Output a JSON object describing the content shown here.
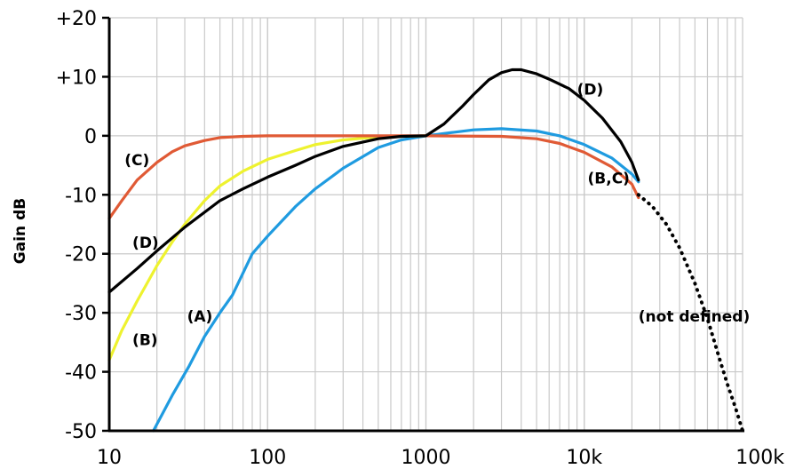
{
  "chart_data": {
    "type": "line",
    "title": "",
    "xlabel": "",
    "ylabel": "Gain dB",
    "x_scale": "log",
    "xlim": [
      10,
      100000
    ],
    "ylim": [
      -50,
      20
    ],
    "grid": true,
    "x_ticks": [
      {
        "value": 10,
        "label": "10"
      },
      {
        "value": 100,
        "label": "100"
      },
      {
        "value": 1000,
        "label": "1000"
      },
      {
        "value": 10000,
        "label": "10k"
      },
      {
        "value": 100000,
        "label": "100k"
      }
    ],
    "y_ticks": [
      {
        "value": 20,
        "label": "+20"
      },
      {
        "value": 10,
        "label": "+10"
      },
      {
        "value": 0,
        "label": "0"
      },
      {
        "value": -10,
        "label": "-10"
      },
      {
        "value": -20,
        "label": "-20"
      },
      {
        "value": -30,
        "label": "-30"
      },
      {
        "value": -40,
        "label": "-40"
      },
      {
        "value": -50,
        "label": "-50"
      }
    ],
    "series": [
      {
        "key": "A",
        "color": "#1f9be0",
        "dashed": false,
        "points": [
          [
            19,
            -50
          ],
          [
            25,
            -44
          ],
          [
            32,
            -39
          ],
          [
            40,
            -34
          ],
          [
            50,
            -30
          ],
          [
            60,
            -27
          ],
          [
            80,
            -20
          ],
          [
            100,
            -17
          ],
          [
            150,
            -12
          ],
          [
            200,
            -9
          ],
          [
            300,
            -5.5
          ],
          [
            500,
            -2
          ],
          [
            700,
            -0.7
          ],
          [
            1000,
            0
          ],
          [
            1500,
            0.6
          ],
          [
            2000,
            1
          ],
          [
            3000,
            1.2
          ],
          [
            5000,
            0.8
          ],
          [
            7000,
            0
          ],
          [
            10000,
            -1.5
          ],
          [
            15000,
            -3.8
          ],
          [
            20000,
            -6.5
          ],
          [
            22000,
            -7.8
          ]
        ]
      },
      {
        "key": "B",
        "color": "#eef22f",
        "dashed": false,
        "points": [
          [
            10,
            -38
          ],
          [
            12,
            -33
          ],
          [
            15,
            -28
          ],
          [
            20,
            -22
          ],
          [
            25,
            -18
          ],
          [
            30,
            -15
          ],
          [
            40,
            -11
          ],
          [
            50,
            -8.5
          ],
          [
            70,
            -6
          ],
          [
            100,
            -4
          ],
          [
            150,
            -2.5
          ],
          [
            200,
            -1.5
          ],
          [
            300,
            -0.7
          ],
          [
            500,
            -0.2
          ],
          [
            1000,
            0
          ]
        ]
      },
      {
        "key": "C",
        "color": "#e05a35",
        "dashed": false,
        "points": [
          [
            10,
            -14
          ],
          [
            12,
            -11
          ],
          [
            15,
            -7.5
          ],
          [
            20,
            -4.5
          ],
          [
            25,
            -2.7
          ],
          [
            30,
            -1.7
          ],
          [
            40,
            -0.8
          ],
          [
            50,
            -0.3
          ],
          [
            70,
            -0.1
          ],
          [
            100,
            0
          ],
          [
            1000,
            0
          ],
          [
            3000,
            -0.1
          ],
          [
            5000,
            -0.5
          ],
          [
            7000,
            -1.3
          ],
          [
            10000,
            -2.8
          ],
          [
            15000,
            -5.3
          ],
          [
            20000,
            -8.2
          ],
          [
            22000,
            -10.5
          ]
        ]
      },
      {
        "key": "D",
        "color": "#000000",
        "dashed": false,
        "points": [
          [
            10,
            -26.5
          ],
          [
            15,
            -22.5
          ],
          [
            20,
            -19.5
          ],
          [
            30,
            -15.5
          ],
          [
            50,
            -11
          ],
          [
            70,
            -9
          ],
          [
            100,
            -7
          ],
          [
            150,
            -5
          ],
          [
            200,
            -3.5
          ],
          [
            300,
            -1.8
          ],
          [
            500,
            -0.5
          ],
          [
            700,
            -0.1
          ],
          [
            1000,
            0
          ],
          [
            1300,
            2
          ],
          [
            1700,
            5
          ],
          [
            2000,
            7
          ],
          [
            2500,
            9.5
          ],
          [
            3000,
            10.7
          ],
          [
            3500,
            11.2
          ],
          [
            4000,
            11.2
          ],
          [
            5000,
            10.5
          ],
          [
            6000,
            9.6
          ],
          [
            8000,
            8
          ],
          [
            10000,
            6
          ],
          [
            13000,
            3
          ],
          [
            17000,
            -1
          ],
          [
            20000,
            -4.5
          ],
          [
            22000,
            -7.5
          ]
        ]
      },
      {
        "key": "not defined",
        "color": "#000000",
        "dashed": true,
        "points": [
          [
            22000,
            -10
          ],
          [
            27000,
            -12
          ],
          [
            33000,
            -15
          ],
          [
            40000,
            -19
          ],
          [
            50000,
            -25
          ],
          [
            60000,
            -31
          ],
          [
            70000,
            -37
          ],
          [
            80000,
            -42
          ],
          [
            90000,
            -46
          ],
          [
            100000,
            -50
          ]
        ]
      }
    ],
    "annotations": [
      {
        "text": "(D)",
        "x": 9000,
        "y": 7
      },
      {
        "text": "(C)",
        "x": 12.5,
        "y": -5
      },
      {
        "text": "(B,C)",
        "x": 10500,
        "y": -8.1
      },
      {
        "text": "(D)",
        "x": 14,
        "y": -19
      },
      {
        "text": "(A)",
        "x": 31,
        "y": -31.5
      },
      {
        "text": "(B)",
        "x": 14,
        "y": -35.5
      },
      {
        "text": "(not defined)",
        "x": 22000,
        "y": -31.5
      }
    ]
  }
}
